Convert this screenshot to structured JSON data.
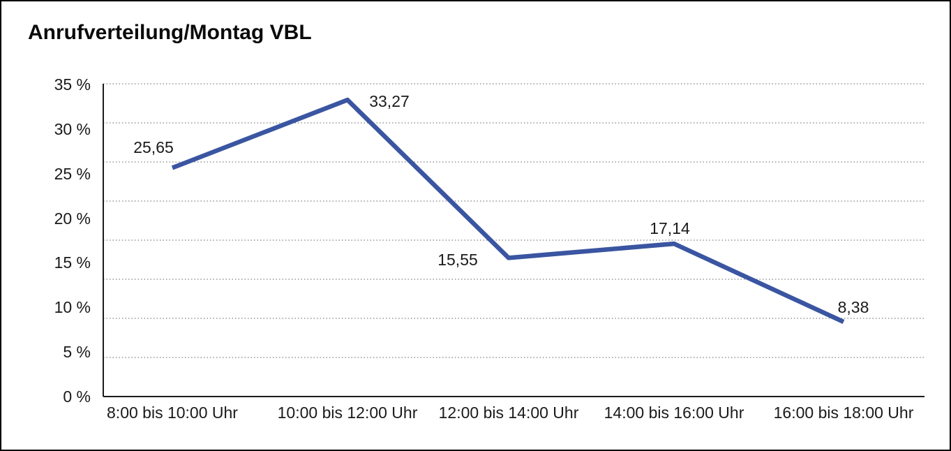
{
  "title": "Anrufverteilung/Montag VBL",
  "chart_data": {
    "type": "line",
    "title": "Anrufverteilung/Montag VBL",
    "categories": [
      "8:00 bis 10:00 Uhr",
      "10:00 bis 12:00 Uhr",
      "12:00 bis 14:00 Uhr",
      "14:00 bis 16:00 Uhr",
      "16:00 bis 18:00 Uhr"
    ],
    "values": [
      25.65,
      33.27,
      15.55,
      17.14,
      8.38
    ],
    "value_labels": [
      "25,65",
      "33,27",
      "15,55",
      "17,14",
      "8,38"
    ],
    "yticks": [
      "0 %",
      "5 %",
      "10 %",
      "15 %",
      "20 %",
      "25 %",
      "30 %",
      "35 %"
    ],
    "ylim": [
      0,
      35
    ],
    "xlabel": "",
    "ylabel": "",
    "legend": "none",
    "grid": "horizontal-dotted",
    "line_color": "#3A55A1",
    "grid_color": "#808080",
    "axis_color": "#1a1a1a",
    "text_color": "#1a1a1a",
    "background_color": "#ffffff"
  }
}
